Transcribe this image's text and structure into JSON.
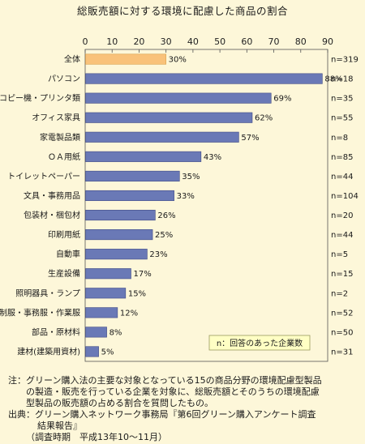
{
  "title": "総販売額に対する環境に配慮した商品の割合",
  "chart_data": {
    "type": "bar",
    "orientation": "horizontal",
    "title": "総販売額に対する環境に配慮した商品の割合",
    "xlim": [
      0,
      90
    ],
    "x_ticks": [
      "0",
      "10",
      "20",
      "30",
      "40",
      "50",
      "60",
      "70",
      "80",
      "90"
    ],
    "categories": [
      "全体",
      "パソコン",
      "コピー機・プリンタ類",
      "オフィス家具",
      "家電製品類",
      "ＯＡ用紙",
      "トイレットペーパー",
      "文具・事務用品",
      "包装材・梱包材",
      "印刷用紙",
      "自動車",
      "生産設備",
      "照明器具・ランプ",
      "制服・事務服・作業服",
      "部品・原材料",
      "建材(建築用資材)"
    ],
    "values": [
      30,
      88,
      69,
      62,
      57,
      43,
      35,
      33,
      26,
      25,
      23,
      17,
      15,
      12,
      8,
      5
    ],
    "value_labels": [
      "30%",
      "88%",
      "69%",
      "62%",
      "57%",
      "43%",
      "35%",
      "33%",
      "26%",
      "25%",
      "23%",
      "17%",
      "15%",
      "12%",
      "8%",
      "5%"
    ],
    "n_labels": [
      "n=319",
      "n=18",
      "n=35",
      "n=55",
      "n=8",
      "n=85",
      "n=44",
      "n=104",
      "n=20",
      "n=44",
      "n=5",
      "n=15",
      "n=2",
      "n=52",
      "n=50",
      "n=31"
    ],
    "highlight_index": 0,
    "legend_text": "n：回答のあった企業数",
    "legend_position": "bottom-right",
    "colors": {
      "highlight_fill": "#f9c27a",
      "highlight_stroke": "#d9a04a",
      "bar_fill": "#6a79b6",
      "bar_stroke": "#3f4a86",
      "background": "#fdf7d9",
      "legend_fill": "#ffffc4",
      "legend_stroke": "#9a9a60"
    }
  },
  "notes": {
    "note_label": "注：",
    "note_line1": "グリーン購入法の主要な対象となっている15の商品分野の環境配慮型製品",
    "note_line2": "の製造・販売を行っている企業を対象に、総販売額とそのうちの環境配慮",
    "note_line3": "型製品の販売額の占める割合を質問したもの。",
    "source_label": "出典：",
    "source_line1": "グリーン購入ネットワーク事務局『第6回グリーン購入アンケート調査",
    "source_line2": "結果報告』",
    "source_line3": "（調査時期　平成13年10～11月）"
  }
}
